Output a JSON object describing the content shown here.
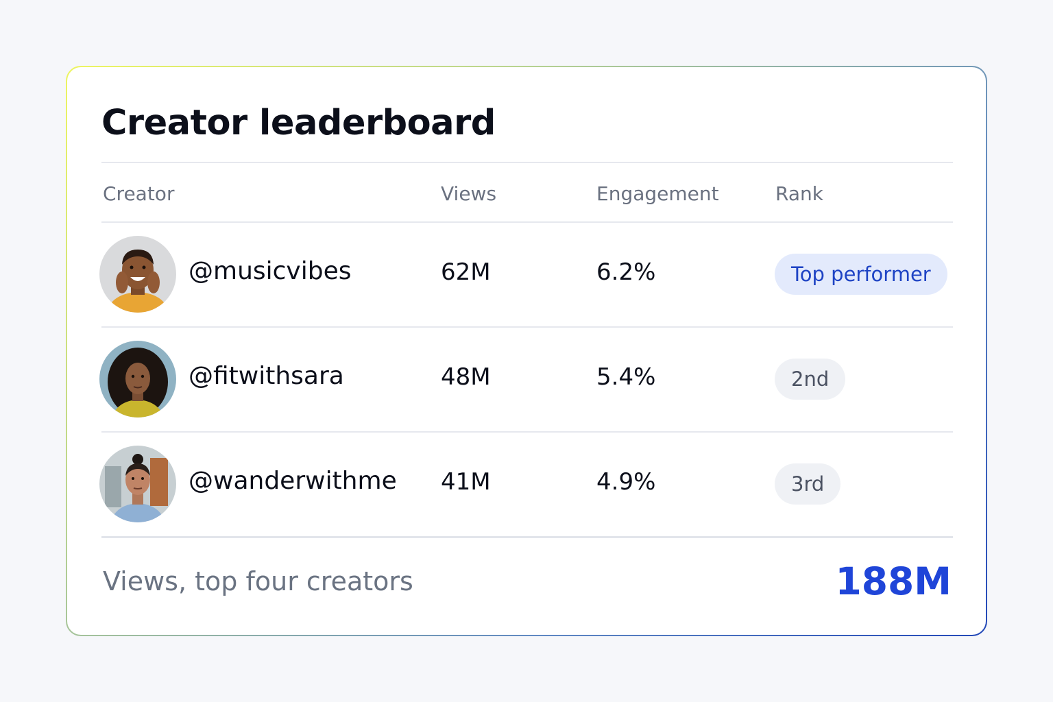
{
  "card": {
    "title": "Creator leaderboard"
  },
  "table": {
    "headers": {
      "creator": "Creator",
      "views": "Views",
      "engagement": "Engagement",
      "rank": "Rank"
    },
    "rows": [
      {
        "handle": "@musicvibes",
        "views": "62M",
        "engagement": "6.2%",
        "rank": "Top performer",
        "rank_style": "highlight"
      },
      {
        "handle": "@fitwithsara",
        "views": "48M",
        "engagement": "5.4%",
        "rank": "2nd",
        "rank_style": "neutral"
      },
      {
        "handle": "@wanderwithme",
        "views": "41M",
        "engagement": "4.9%",
        "rank": "3rd",
        "rank_style": "neutral"
      }
    ]
  },
  "footer": {
    "label": "Views, top four creators",
    "total": "188M"
  },
  "colors": {
    "accent": "#1f45d8",
    "pill_highlight_bg": "#e3eafc",
    "pill_neutral_bg": "#eff1f5",
    "border_gradient_start": "#eef561",
    "border_gradient_end": "#2348b8"
  }
}
